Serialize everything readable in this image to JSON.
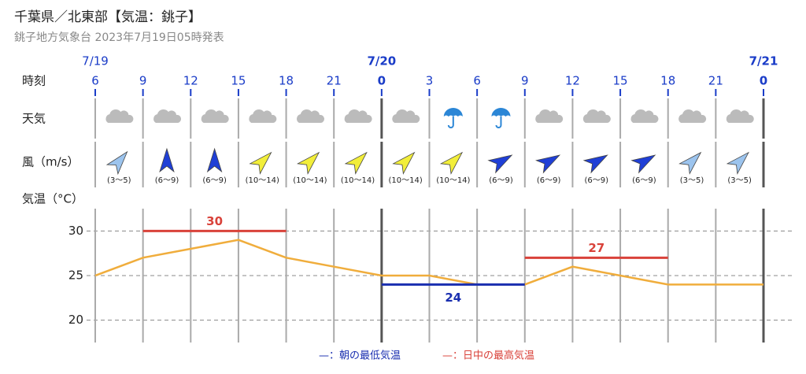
{
  "header": {
    "title": "千葉県／北東部【気温：銚子】",
    "subtitle": "銚子地方気象台 2023年7月19日05時発表"
  },
  "row_labels": {
    "time": "時刻",
    "weather": "天気",
    "wind": "風（m/s）"
  },
  "dates": [
    "7/19",
    null,
    null,
    null,
    null,
    null,
    "7/20",
    null,
    null,
    null,
    null,
    null,
    null,
    null,
    "7/21"
  ],
  "weather": [
    "cloud",
    "cloud",
    "cloud",
    "cloud",
    "cloud",
    "cloud",
    "cloud",
    "rain",
    "rain",
    "cloud",
    "cloud",
    "cloud",
    "cloud",
    "cloud"
  ],
  "wind": {
    "speeds": [
      "(3〜5)",
      "(6〜9)",
      "(6〜9)",
      "(10〜14)",
      "(10〜14)",
      "(10〜14)",
      "(10〜14)",
      "(10〜14)",
      "(6〜9)",
      "(6〜9)",
      "(6〜9)",
      "(6〜9)",
      "(3〜5)",
      "(3〜5)"
    ],
    "colors": [
      "#9cc4ee",
      "#1f3fd6",
      "#1f3fd6",
      "#f2ee3a",
      "#f2ee3a",
      "#f2ee3a",
      "#f2ee3a",
      "#f2ee3a",
      "#1f3fd6",
      "#1f3fd6",
      "#1f3fd6",
      "#1f3fd6",
      "#9cc4ee",
      "#9cc4ee"
    ],
    "directions": [
      40,
      0,
      0,
      45,
      45,
      45,
      45,
      45,
      60,
      60,
      60,
      60,
      45,
      45
    ]
  },
  "chart_data": {
    "type": "line",
    "ylabel": "気温（°C）",
    "categories": [
      "6",
      "9",
      "12",
      "15",
      "18",
      "21",
      "0",
      "3",
      "6",
      "9",
      "12",
      "15",
      "18",
      "21",
      "0"
    ],
    "series": [
      {
        "color": "#f0ad3c",
        "values": [
          25,
          27,
          28,
          29,
          27,
          26,
          25,
          25,
          24,
          24,
          26,
          25,
          24,
          24,
          24
        ]
      }
    ],
    "highs": [
      {
        "value": 30,
        "from": 1,
        "to": 4
      },
      {
        "value": 27,
        "from": 9,
        "to": 12
      }
    ],
    "lows": [
      {
        "value": 24,
        "from": 6,
        "to": 9
      }
    ],
    "high_color": "#d9423a",
    "low_color": "#1a2fb0",
    "legend": {
      "low": "—：朝の最低気温",
      "high": "—：日中の最高気温"
    },
    "ylim": [
      17.5,
      32.5
    ],
    "yticks": [
      20,
      25,
      30
    ],
    "grid": true
  }
}
